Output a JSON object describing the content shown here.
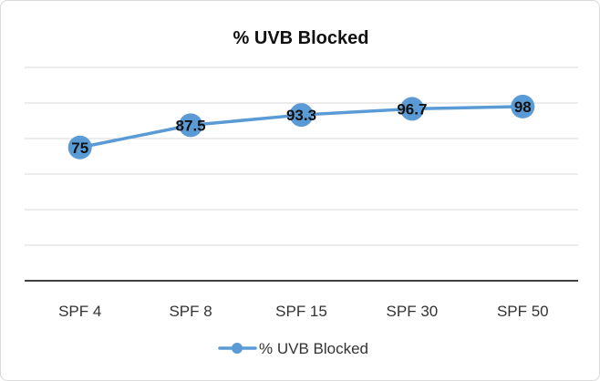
{
  "chart_data": {
    "type": "line",
    "title": "% UVB Blocked",
    "categories": [
      "SPF 4",
      "SPF 8",
      "SPF 15",
      "SPF 30",
      "SPF 50"
    ],
    "series": [
      {
        "name": "% UVB Blocked",
        "values": [
          75,
          87.5,
          93.3,
          96.7,
          98
        ],
        "data_labels": [
          "75",
          "87.5",
          "93.3",
          "96.7",
          "98"
        ],
        "color": "#5B9BD5"
      }
    ],
    "xlabel": "",
    "ylabel": "",
    "ylim": [
      0,
      120
    ],
    "y_tick_labels_shown": false,
    "grid": true,
    "legend": "bottom"
  }
}
